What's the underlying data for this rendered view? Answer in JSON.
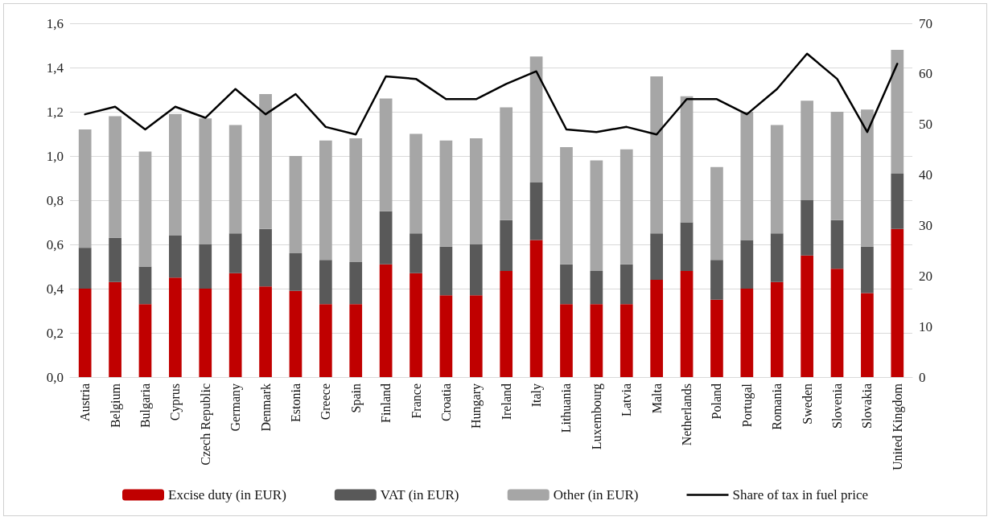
{
  "chart_data": {
    "type": "bar",
    "stacked": true,
    "categories": [
      "Austria",
      "Belgium",
      "Bulgaria",
      "Cyprus",
      "Czech Republic",
      "Germany",
      "Denmark",
      "Estonia",
      "Greece",
      "Spain",
      "Finland",
      "France",
      "Croatia",
      "Hungary",
      "Ireland",
      "Italy",
      "Lithuania",
      "Luxembourg",
      "Latvia",
      "Malta",
      "Netherlands",
      "Poland",
      "Portugal",
      "Romania",
      "Sweden",
      "Slovenia",
      "Slovakia",
      "United Kingdom"
    ],
    "series": [
      {
        "name": "Excise duty (in EUR)",
        "color": "#c00000",
        "values": [
          0.4,
          0.43,
          0.33,
          0.45,
          0.4,
          0.47,
          0.41,
          0.39,
          0.33,
          0.33,
          0.51,
          0.47,
          0.37,
          0.37,
          0.48,
          0.62,
          0.33,
          0.33,
          0.33,
          0.44,
          0.48,
          0.35,
          0.4,
          0.43,
          0.55,
          0.49,
          0.38,
          0.67
        ]
      },
      {
        "name": "VAT (in EUR)",
        "color": "#595959",
        "values": [
          0.185,
          0.2,
          0.17,
          0.19,
          0.2,
          0.18,
          0.26,
          0.17,
          0.2,
          0.19,
          0.24,
          0.18,
          0.22,
          0.23,
          0.23,
          0.26,
          0.18,
          0.15,
          0.18,
          0.21,
          0.22,
          0.18,
          0.22,
          0.22,
          0.25,
          0.22,
          0.21,
          0.25
        ]
      },
      {
        "name": "Other (in EUR)",
        "color": "#a6a6a6",
        "values": [
          0.535,
          0.55,
          0.52,
          0.55,
          0.57,
          0.49,
          0.61,
          0.44,
          0.54,
          0.56,
          0.51,
          0.45,
          0.48,
          0.48,
          0.51,
          0.57,
          0.53,
          0.5,
          0.52,
          0.71,
          0.57,
          0.42,
          0.58,
          0.49,
          0.45,
          0.49,
          0.62,
          0.56
        ]
      },
      {
        "name": "Share of tax in fuel price",
        "type": "line",
        "axis": "y2",
        "color": "#000000",
        "values": [
          52,
          53.5,
          49,
          53.5,
          51.3,
          57,
          52,
          56,
          49.5,
          48,
          59.5,
          59,
          55,
          55,
          58,
          60.5,
          49,
          48.5,
          49.5,
          48,
          55,
          55,
          52,
          57,
          64,
          59,
          48.5,
          62
        ]
      }
    ],
    "ylim": [
      0,
      1.6
    ],
    "yticks": [
      {
        "value": 0,
        "label": "0,0"
      },
      {
        "value": 0.2,
        "label": "0,2"
      },
      {
        "value": 0.4,
        "label": "0,4"
      },
      {
        "value": 0.6,
        "label": "0,6"
      },
      {
        "value": 0.8,
        "label": "0,8"
      },
      {
        "value": 1.0,
        "label": "1,0"
      },
      {
        "value": 1.2,
        "label": "1,2"
      },
      {
        "value": 1.4,
        "label": "1,4"
      },
      {
        "value": 1.6,
        "label": "1,6"
      }
    ],
    "y2lim": [
      0,
      70
    ],
    "y2ticks": [
      0,
      10,
      20,
      30,
      40,
      50,
      60,
      70
    ],
    "grid": "y",
    "legend": "bottom",
    "marker": "none",
    "line_style": "solid"
  }
}
